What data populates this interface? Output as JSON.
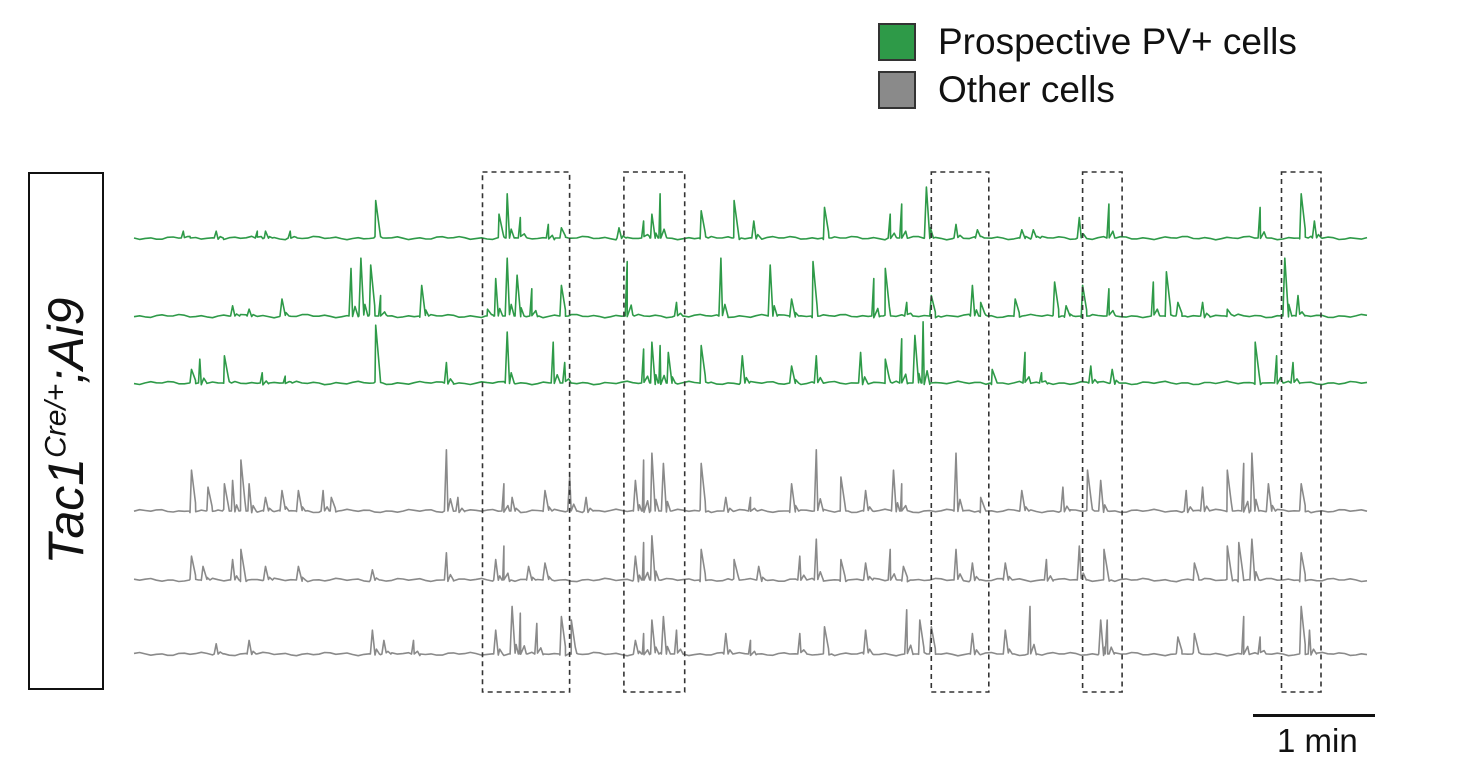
{
  "legend": {
    "items": [
      {
        "label": "Prospective PV+ cells",
        "color": "#2e9a48"
      },
      {
        "label": "Other cells",
        "color": "#8a8a8a"
      }
    ]
  },
  "genotype": {
    "gene": "Tac1",
    "superscript": "Cre/+",
    "suffix": ";Ai9"
  },
  "scale_bar": {
    "label": "1 min"
  },
  "chart_data": {
    "type": "line",
    "xlim": [
      0,
      7.5
    ],
    "x_unit": "min",
    "series": [
      {
        "color": "#2e9a48",
        "group": "Prospective PV+ cells",
        "spikes": [
          [
            0.3,
            0.1
          ],
          [
            0.5,
            0.1
          ],
          [
            0.75,
            0.1
          ],
          [
            0.8,
            0.1
          ],
          [
            0.95,
            0.1
          ],
          [
            1.47,
            0.55
          ],
          [
            2.22,
            0.35
          ],
          [
            2.27,
            0.65
          ],
          [
            2.35,
            0.3
          ],
          [
            2.52,
            0.2
          ],
          [
            2.6,
            0.15
          ],
          [
            2.95,
            0.15
          ],
          [
            3.1,
            0.25
          ],
          [
            3.15,
            0.35
          ],
          [
            3.2,
            0.65
          ],
          [
            3.45,
            0.4
          ],
          [
            3.65,
            0.55
          ],
          [
            3.77,
            0.25
          ],
          [
            4.2,
            0.45
          ],
          [
            4.6,
            0.35
          ],
          [
            4.67,
            0.5
          ],
          [
            4.82,
            0.75
          ],
          [
            5.0,
            0.2
          ],
          [
            5.13,
            0.12
          ],
          [
            5.4,
            0.12
          ],
          [
            5.47,
            0.12
          ],
          [
            5.75,
            0.3
          ],
          [
            5.93,
            0.5
          ],
          [
            6.85,
            0.45
          ],
          [
            7.1,
            0.65
          ],
          [
            7.18,
            0.25
          ]
        ]
      },
      {
        "color": "#2e9a48",
        "group": "Prospective PV+ cells",
        "spikes": [
          [
            0.6,
            0.15
          ],
          [
            0.7,
            0.1
          ],
          [
            0.9,
            0.25
          ],
          [
            1.32,
            0.7
          ],
          [
            1.38,
            0.85
          ],
          [
            1.44,
            0.75
          ],
          [
            1.5,
            0.3
          ],
          [
            1.75,
            0.45
          ],
          [
            2.15,
            0.1
          ],
          [
            2.2,
            0.55
          ],
          [
            2.27,
            0.85
          ],
          [
            2.33,
            0.6
          ],
          [
            2.42,
            0.4
          ],
          [
            2.6,
            0.45
          ],
          [
            3.0,
            0.8
          ],
          [
            3.3,
            0.2
          ],
          [
            3.57,
            0.85
          ],
          [
            3.87,
            0.75
          ],
          [
            4.0,
            0.25
          ],
          [
            4.13,
            0.8
          ],
          [
            4.5,
            0.55
          ],
          [
            4.57,
            0.7
          ],
          [
            4.7,
            0.2
          ],
          [
            4.85,
            0.3
          ],
          [
            5.1,
            0.45
          ],
          [
            5.15,
            0.2
          ],
          [
            5.36,
            0.25
          ],
          [
            5.6,
            0.5
          ],
          [
            5.67,
            0.15
          ],
          [
            5.77,
            0.45
          ],
          [
            5.93,
            0.4
          ],
          [
            6.2,
            0.5
          ],
          [
            6.28,
            0.65
          ],
          [
            6.35,
            0.2
          ],
          [
            6.5,
            0.2
          ],
          [
            6.65,
            0.1
          ],
          [
            7.0,
            0.85
          ],
          [
            7.08,
            0.3
          ]
        ]
      },
      {
        "color": "#2e9a48",
        "group": "Prospective PV+ cells",
        "spikes": [
          [
            0.35,
            0.2
          ],
          [
            0.4,
            0.35
          ],
          [
            0.55,
            0.4
          ],
          [
            0.78,
            0.15
          ],
          [
            0.92,
            0.1
          ],
          [
            1.47,
            0.85
          ],
          [
            1.9,
            0.3
          ],
          [
            2.27,
            0.75
          ],
          [
            2.55,
            0.6
          ],
          [
            2.62,
            0.3
          ],
          [
            3.1,
            0.5
          ],
          [
            3.15,
            0.6
          ],
          [
            3.2,
            0.55
          ],
          [
            3.25,
            0.45
          ],
          [
            3.45,
            0.55
          ],
          [
            3.7,
            0.4
          ],
          [
            4.0,
            0.25
          ],
          [
            4.15,
            0.4
          ],
          [
            4.42,
            0.45
          ],
          [
            4.57,
            0.35
          ],
          [
            4.67,
            0.65
          ],
          [
            4.75,
            0.7
          ],
          [
            4.8,
            0.9
          ],
          [
            5.22,
            0.2
          ],
          [
            5.42,
            0.45
          ],
          [
            5.52,
            0.15
          ],
          [
            5.82,
            0.25
          ],
          [
            5.95,
            0.2
          ],
          [
            6.82,
            0.6
          ],
          [
            6.95,
            0.4
          ],
          [
            7.05,
            0.3
          ]
        ]
      },
      {
        "color": "#8a8a8a",
        "group": "Other cells",
        "spikes": [
          [
            0.35,
            0.6
          ],
          [
            0.45,
            0.35
          ],
          [
            0.55,
            0.4
          ],
          [
            0.6,
            0.45
          ],
          [
            0.65,
            0.75
          ],
          [
            0.7,
            0.4
          ],
          [
            0.8,
            0.2
          ],
          [
            0.9,
            0.3
          ],
          [
            1.0,
            0.3
          ],
          [
            1.15,
            0.3
          ],
          [
            1.2,
            0.2
          ],
          [
            1.9,
            0.9
          ],
          [
            1.97,
            0.2
          ],
          [
            2.25,
            0.4
          ],
          [
            2.3,
            0.2
          ],
          [
            2.5,
            0.3
          ],
          [
            2.65,
            0.5
          ],
          [
            2.75,
            0.2
          ],
          [
            3.05,
            0.45
          ],
          [
            3.1,
            0.75
          ],
          [
            3.15,
            0.85
          ],
          [
            3.22,
            0.7
          ],
          [
            3.45,
            0.7
          ],
          [
            3.6,
            0.2
          ],
          [
            3.75,
            0.2
          ],
          [
            4.0,
            0.4
          ],
          [
            4.15,
            0.9
          ],
          [
            4.3,
            0.5
          ],
          [
            4.45,
            0.3
          ],
          [
            4.62,
            0.6
          ],
          [
            4.67,
            0.4
          ],
          [
            5.0,
            0.85
          ],
          [
            5.15,
            0.2
          ],
          [
            5.4,
            0.3
          ],
          [
            5.65,
            0.35
          ],
          [
            5.8,
            0.6
          ],
          [
            5.88,
            0.45
          ],
          [
            6.4,
            0.3
          ],
          [
            6.5,
            0.35
          ],
          [
            6.65,
            0.6
          ],
          [
            6.75,
            0.7
          ],
          [
            6.8,
            0.85
          ],
          [
            6.9,
            0.4
          ],
          [
            7.1,
            0.4
          ]
        ]
      },
      {
        "color": "#8a8a8a",
        "group": "Other cells",
        "spikes": [
          [
            0.35,
            0.35
          ],
          [
            0.42,
            0.2
          ],
          [
            0.6,
            0.3
          ],
          [
            0.65,
            0.45
          ],
          [
            0.8,
            0.2
          ],
          [
            1.0,
            0.2
          ],
          [
            1.45,
            0.15
          ],
          [
            1.9,
            0.4
          ],
          [
            2.2,
            0.3
          ],
          [
            2.25,
            0.5
          ],
          [
            2.4,
            0.2
          ],
          [
            2.5,
            0.25
          ],
          [
            3.05,
            0.35
          ],
          [
            3.1,
            0.55
          ],
          [
            3.15,
            0.65
          ],
          [
            3.45,
            0.45
          ],
          [
            3.65,
            0.3
          ],
          [
            3.8,
            0.2
          ],
          [
            4.05,
            0.35
          ],
          [
            4.15,
            0.6
          ],
          [
            4.3,
            0.3
          ],
          [
            4.45,
            0.25
          ],
          [
            4.6,
            0.45
          ],
          [
            4.68,
            0.2
          ],
          [
            5.0,
            0.45
          ],
          [
            5.1,
            0.25
          ],
          [
            5.3,
            0.25
          ],
          [
            5.55,
            0.3
          ],
          [
            5.75,
            0.5
          ],
          [
            5.9,
            0.45
          ],
          [
            6.45,
            0.25
          ],
          [
            6.65,
            0.5
          ],
          [
            6.72,
            0.55
          ],
          [
            6.8,
            0.6
          ],
          [
            7.1,
            0.4
          ]
        ]
      },
      {
        "color": "#8a8a8a",
        "group": "Other cells",
        "spikes": [
          [
            0.5,
            0.15
          ],
          [
            0.7,
            0.2
          ],
          [
            1.45,
            0.35
          ],
          [
            1.52,
            0.2
          ],
          [
            1.7,
            0.2
          ],
          [
            2.2,
            0.35
          ],
          [
            2.3,
            0.7
          ],
          [
            2.35,
            0.6
          ],
          [
            2.45,
            0.45
          ],
          [
            2.6,
            0.55
          ],
          [
            2.66,
            0.5
          ],
          [
            3.05,
            0.2
          ],
          [
            3.1,
            0.3
          ],
          [
            3.15,
            0.5
          ],
          [
            3.22,
            0.55
          ],
          [
            3.3,
            0.35
          ],
          [
            3.6,
            0.3
          ],
          [
            3.75,
            0.2
          ],
          [
            4.05,
            0.3
          ],
          [
            4.2,
            0.4
          ],
          [
            4.45,
            0.35
          ],
          [
            4.7,
            0.65
          ],
          [
            4.78,
            0.5
          ],
          [
            4.85,
            0.4
          ],
          [
            5.1,
            0.3
          ],
          [
            5.3,
            0.35
          ],
          [
            5.45,
            0.7
          ],
          [
            5.88,
            0.5
          ],
          [
            5.92,
            0.5
          ],
          [
            6.35,
            0.25
          ],
          [
            6.45,
            0.3
          ],
          [
            6.75,
            0.55
          ],
          [
            6.85,
            0.25
          ],
          [
            7.1,
            0.7
          ],
          [
            7.15,
            0.35
          ]
        ]
      }
    ],
    "highlight_windows": [
      [
        2.12,
        2.65
      ],
      [
        2.98,
        3.35
      ],
      [
        4.85,
        5.2
      ],
      [
        5.77,
        6.01
      ],
      [
        6.98,
        7.22
      ]
    ],
    "scale_bar_min": 1
  }
}
